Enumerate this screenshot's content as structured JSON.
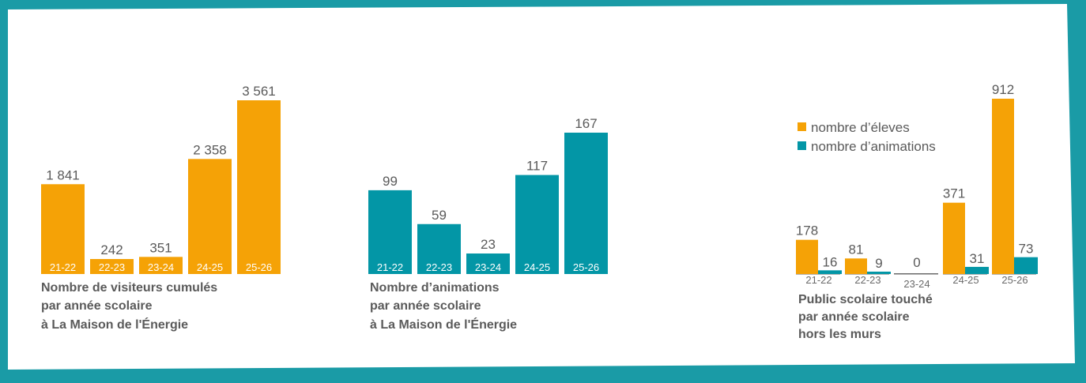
{
  "colors": {
    "frame": "#1a9ba6",
    "panel": "#ffffff",
    "orange": "#f5a206",
    "teal": "#0396a6",
    "text": "#5a5a5a"
  },
  "chart_data": [
    {
      "type": "bar",
      "categories": [
        "21-22",
        "22-23",
        "23-24",
        "24-25",
        "25-26"
      ],
      "values": [
        1841,
        242,
        351,
        2358,
        3561
      ],
      "value_labels": [
        "1 841",
        "242",
        "351",
        "2 358",
        "3 561"
      ],
      "title": "Nombre de visiteurs cumulés par année scolaire à La Maison de l'Énergie",
      "title_lines": [
        "Nombre de visiteurs cumulés",
        "par année scolaire",
        "à La Maison de l'Énergie"
      ],
      "color": "#f5a206",
      "ylim": [
        0,
        3561
      ]
    },
    {
      "type": "bar",
      "categories": [
        "21-22",
        "22-23",
        "23-24",
        "24-25",
        "25-26"
      ],
      "values": [
        99,
        59,
        23,
        117,
        167
      ],
      "value_labels": [
        "99",
        "59",
        "23",
        "117",
        "167"
      ],
      "title": "Nombre d’animations par année scolaire à La Maison de l'Énergie",
      "title_lines": [
        "Nombre d’animations",
        "par année scolaire",
        "à La Maison de l'Énergie"
      ],
      "color": "#0396a6",
      "ylim": [
        0,
        167
      ]
    },
    {
      "type": "bar",
      "categories": [
        "21-22",
        "22-23",
        "23-24",
        "24-25",
        "25-26"
      ],
      "series": [
        {
          "name": "nombre d’éleves",
          "values": [
            178,
            81,
            0,
            371,
            912
          ],
          "value_labels": [
            "178",
            "81",
            "0",
            "371",
            "912"
          ],
          "color": "#f5a206"
        },
        {
          "name": "nombre d’animations",
          "values": [
            16,
            9,
            0,
            31,
            73
          ],
          "value_labels": [
            "16",
            "9",
            "",
            "31",
            "73"
          ],
          "color": "#0396a6"
        }
      ],
      "title": "Public scolaire touché par année scolaire hors les murs",
      "title_lines": [
        "Public scolaire touché",
        "par année scolaire",
        "hors les murs"
      ],
      "legend": "top-left",
      "ylim": [
        0,
        912
      ]
    }
  ]
}
